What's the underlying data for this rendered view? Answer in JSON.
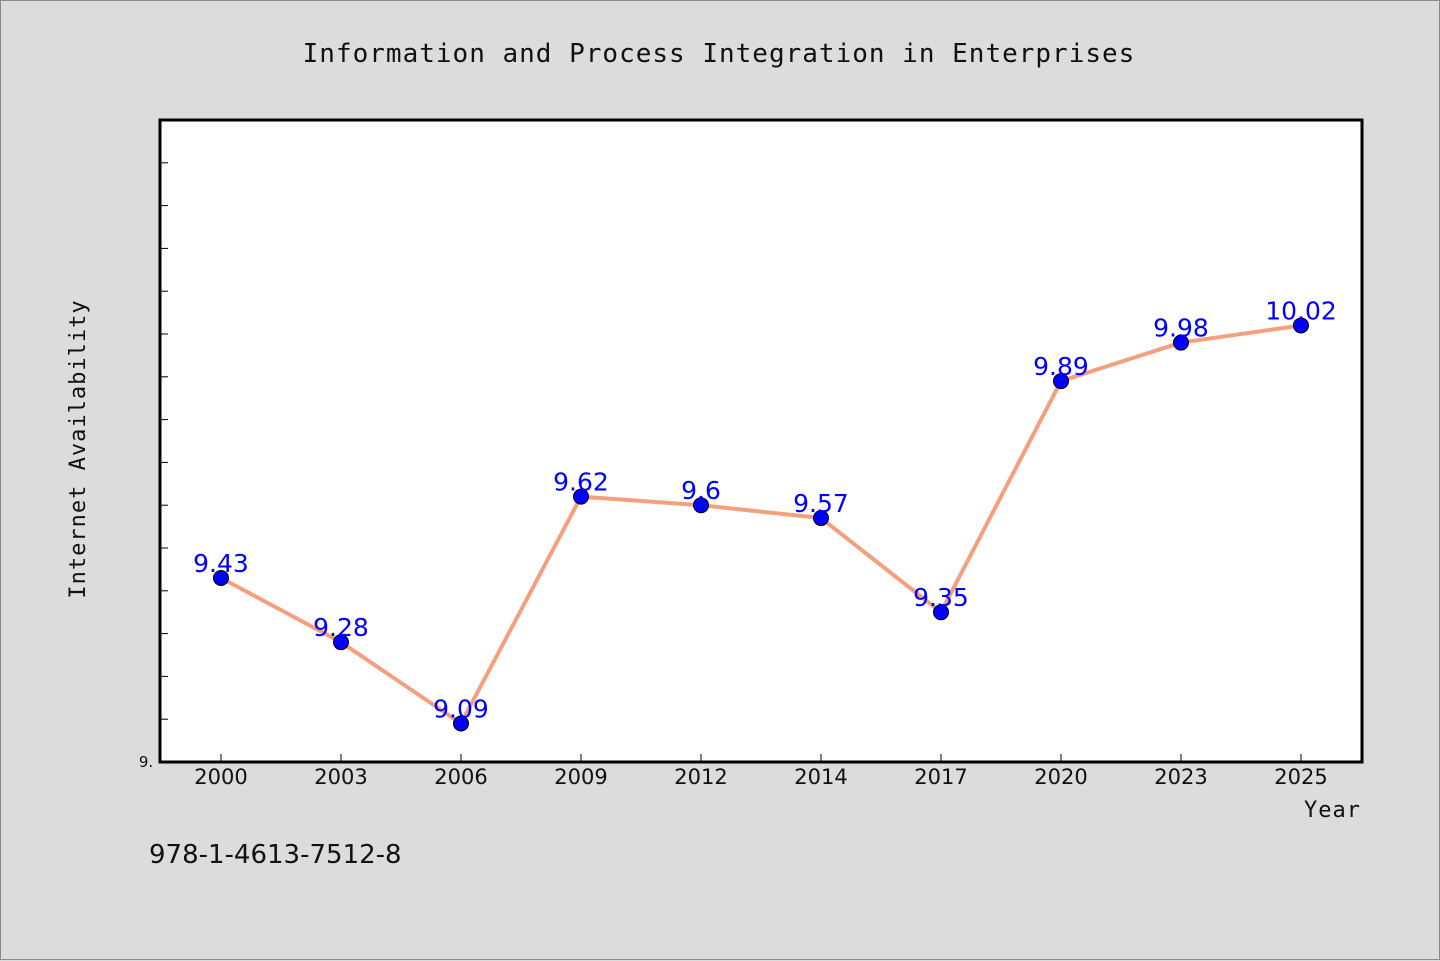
{
  "chart_data": {
    "type": "line",
    "title": "Information and Process Integration in Enterprises",
    "xlabel": "Year",
    "ylabel": "Internet Availability",
    "categories": [
      "2000",
      "2003",
      "2006",
      "2009",
      "2012",
      "2014",
      "2017",
      "2020",
      "2023",
      "2025"
    ],
    "series": [
      {
        "values": [
          9.43,
          9.28,
          9.09,
          9.62,
          9.6,
          9.57,
          9.35,
          9.89,
          9.98,
          10.02
        ],
        "data_labels": [
          "9.43",
          "9.28",
          "9.09",
          "9.62",
          "9.6",
          "9.57",
          "9.35",
          "9.89",
          "9.98",
          "10.02"
        ]
      }
    ],
    "ylim": [
      9.0,
      10.5
    ],
    "yticks": [
      9.0,
      9.1,
      9.2,
      9.3,
      9.4,
      9.5,
      9.6,
      9.7,
      9.8,
      9.9,
      10.0,
      10.1,
      10.2,
      10.3,
      10.4
    ],
    "ytick_labels_visible": [
      "9."
    ],
    "line_color": "#f4a07e",
    "marker_color": "#0000ff",
    "label_color": "#0000ff",
    "plot_background": "#ffffff",
    "figure_background": "#dcdcdc",
    "grid": false,
    "legend": "none"
  },
  "footnote": "978-1-4613-7512-8"
}
